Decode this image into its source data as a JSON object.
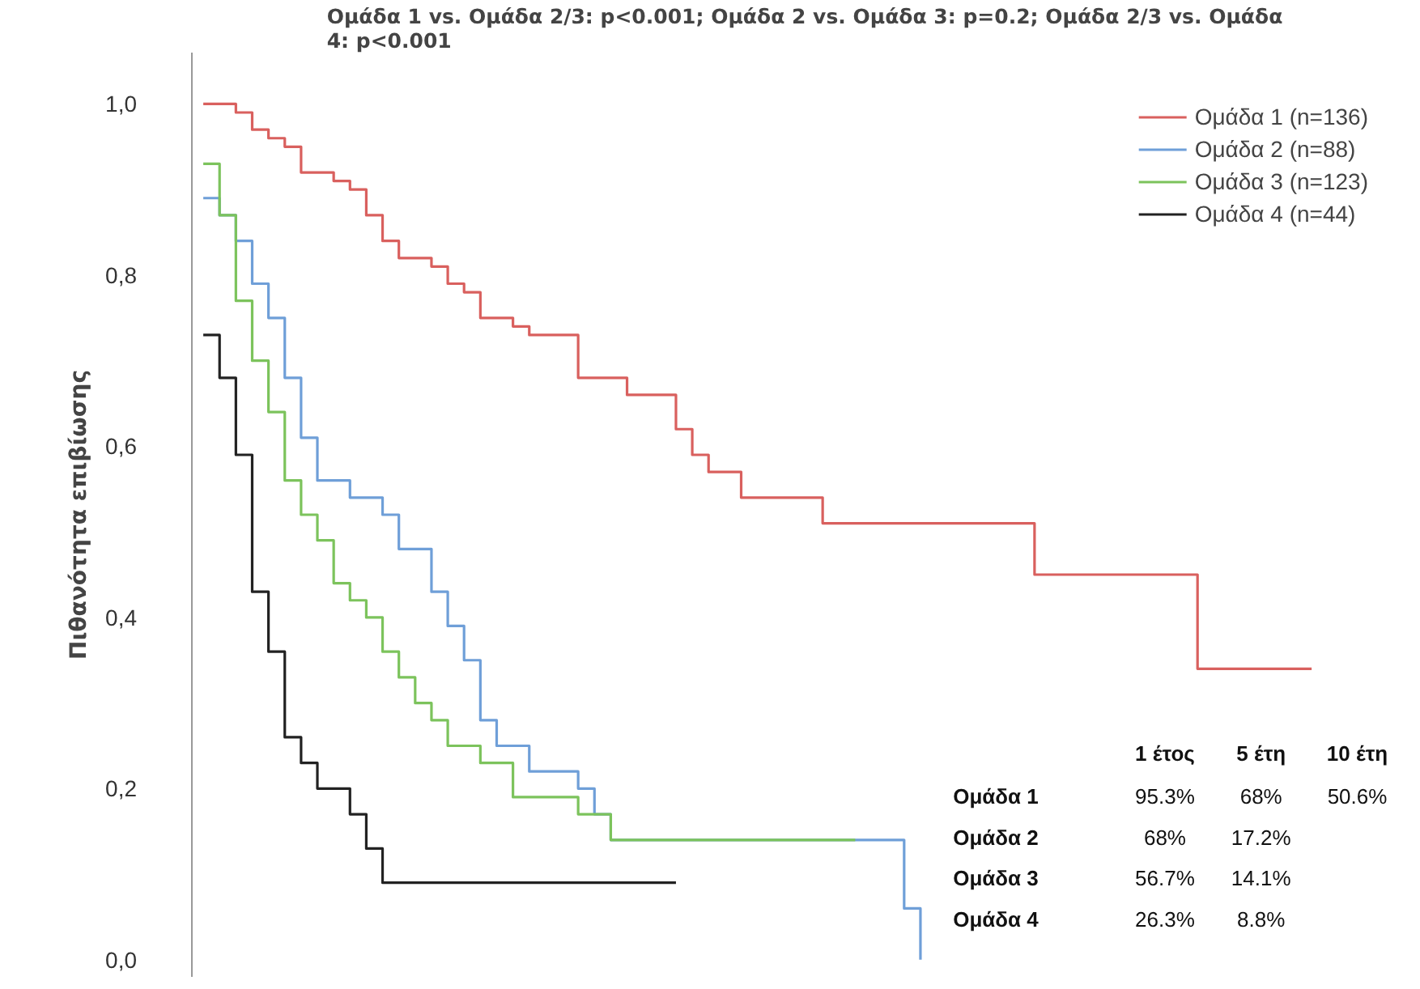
{
  "chart_data": {
    "type": "step",
    "title": "Ομάδα 1 vs. Ομάδα 2/3: p<0.001; Ομάδα 2 vs. Ομάδα 3: p=0.2; Ομάδα 2/3 vs. Ομάδα 4: p<0.001",
    "ylabel": "Πιθανότητα επιβίωσης",
    "categories": [
      null,
      null,
      null,
      null,
      null,
      null,
      null,
      null,
      null,
      null,
      null,
      null,
      null,
      null,
      null,
      null,
      null,
      null,
      null,
      null,
      null,
      null,
      null,
      null,
      null,
      null,
      null,
      null,
      null,
      null,
      null,
      null,
      null,
      null,
      null,
      null,
      null,
      null,
      null,
      null,
      null,
      null,
      null,
      null,
      null,
      null,
      null,
      null,
      null,
      null,
      null,
      null,
      null,
      null,
      null,
      null,
      null,
      null,
      null,
      null,
      null,
      null,
      null,
      null,
      null,
      null,
      null,
      null,
      null
    ],
    "series": [
      {
        "name": "Ομάδα 1 (n=136)",
        "color": "#d9605e",
        "values": [
          1.0,
          1.0,
          0.99,
          0.97,
          0.96,
          0.95,
          0.92,
          0.92,
          0.91,
          0.9,
          0.87,
          0.84,
          0.82,
          0.82,
          0.81,
          0.79,
          0.78,
          0.75,
          0.75,
          0.74,
          0.73,
          0.73,
          0.73,
          0.68,
          0.68,
          0.68,
          0.66,
          0.66,
          0.66,
          0.62,
          0.59,
          0.57,
          0.57,
          0.54,
          0.54,
          0.54,
          0.54,
          0.54,
          0.51,
          0.51,
          0.51,
          0.51,
          0.51,
          0.51,
          0.51,
          0.51,
          0.51,
          0.51,
          0.51,
          0.51,
          0.51,
          0.45,
          0.45,
          0.45,
          0.45,
          0.45,
          0.45,
          0.45,
          0.45,
          0.45,
          0.45,
          0.34,
          0.34,
          0.34,
          0.34,
          0.34,
          0.34,
          0.34,
          0.34
        ]
      },
      {
        "name": "Ομάδα 2 (n=88)",
        "color": "#6f9fd8",
        "values": [
          0.89,
          0.87,
          0.84,
          0.79,
          0.75,
          0.68,
          0.61,
          0.56,
          0.56,
          0.54,
          0.54,
          0.52,
          0.48,
          0.48,
          0.43,
          0.39,
          0.35,
          0.28,
          0.25,
          0.25,
          0.22,
          0.22,
          0.22,
          0.2,
          0.17,
          0.14,
          0.14,
          0.14,
          0.14,
          0.14,
          0.14,
          0.14,
          0.14,
          0.14,
          0.14,
          0.14,
          0.14,
          0.14,
          0.14,
          0.14,
          0.14,
          0.14,
          0.14,
          0.06,
          0.0,
          null,
          null,
          null,
          null,
          null,
          null,
          null,
          null,
          null,
          null,
          null,
          null,
          null,
          null,
          null,
          null,
          null,
          null,
          null,
          null,
          null,
          null,
          null,
          null
        ]
      },
      {
        "name": "Ομάδα 3 (n=123)",
        "color": "#7cc35c",
        "values": [
          0.93,
          0.87,
          0.77,
          0.7,
          0.64,
          0.56,
          0.52,
          0.49,
          0.44,
          0.42,
          0.4,
          0.36,
          0.33,
          0.3,
          0.28,
          0.25,
          0.25,
          0.23,
          0.23,
          0.19,
          0.19,
          0.19,
          0.19,
          0.17,
          0.17,
          0.14,
          0.14,
          0.14,
          0.14,
          0.14,
          0.14,
          0.14,
          0.14,
          0.14,
          0.14,
          0.14,
          0.14,
          0.14,
          0.14,
          0.14,
          0.14,
          null,
          null,
          null,
          null,
          null,
          null,
          null,
          null,
          null,
          null,
          null,
          null,
          null,
          null,
          null,
          null,
          null,
          null,
          null,
          null,
          null,
          null,
          null,
          null,
          null,
          null,
          null,
          null
        ]
      },
      {
        "name": "Ομάδα 4 (n=44)",
        "color": "#222222",
        "values": [
          0.73,
          0.68,
          0.59,
          0.43,
          0.36,
          0.26,
          0.23,
          0.2,
          0.2,
          0.17,
          0.13,
          0.09,
          0.09,
          0.09,
          0.09,
          0.09,
          0.09,
          0.09,
          0.09,
          0.09,
          0.09,
          0.09,
          0.09,
          0.09,
          0.09,
          0.09,
          0.09,
          0.09,
          0.09,
          0.09,
          null,
          null,
          null,
          null,
          null,
          null,
          null,
          null,
          null,
          null,
          null,
          null,
          null,
          null,
          null,
          null,
          null,
          null,
          null,
          null,
          null,
          null,
          null,
          null,
          null,
          null,
          null,
          null,
          null,
          null,
          null,
          null,
          null,
          null,
          null,
          null,
          null,
          null,
          null
        ]
      }
    ],
    "ylim": [
      -0.02,
      1.06
    ],
    "yticks": [
      {
        "value": 0,
        "label": "0,0"
      },
      {
        "value": 0.2,
        "label": "0,2"
      },
      {
        "value": 0.4,
        "label": "0,4"
      },
      {
        "value": 0.6,
        "label": "0,6"
      },
      {
        "value": 0.8,
        "label": "0,8"
      },
      {
        "value": 1,
        "label": "1,0"
      }
    ],
    "tick_labels": "y",
    "grid": false,
    "legend": "top right",
    "line_style": "solid",
    "marker": "none",
    "annotations": [
      "\t1 έτος\t5 έτη\t10 έτη",
      "Ομάδα 1\t95.3%\t68%\t50.6%",
      "Ομάδα 2\t68%\t17.2%",
      "Ομάδα 3\t56.7%\t14.1%",
      "Ομάδα 4\t26.3%\t8.8%"
    ]
  }
}
